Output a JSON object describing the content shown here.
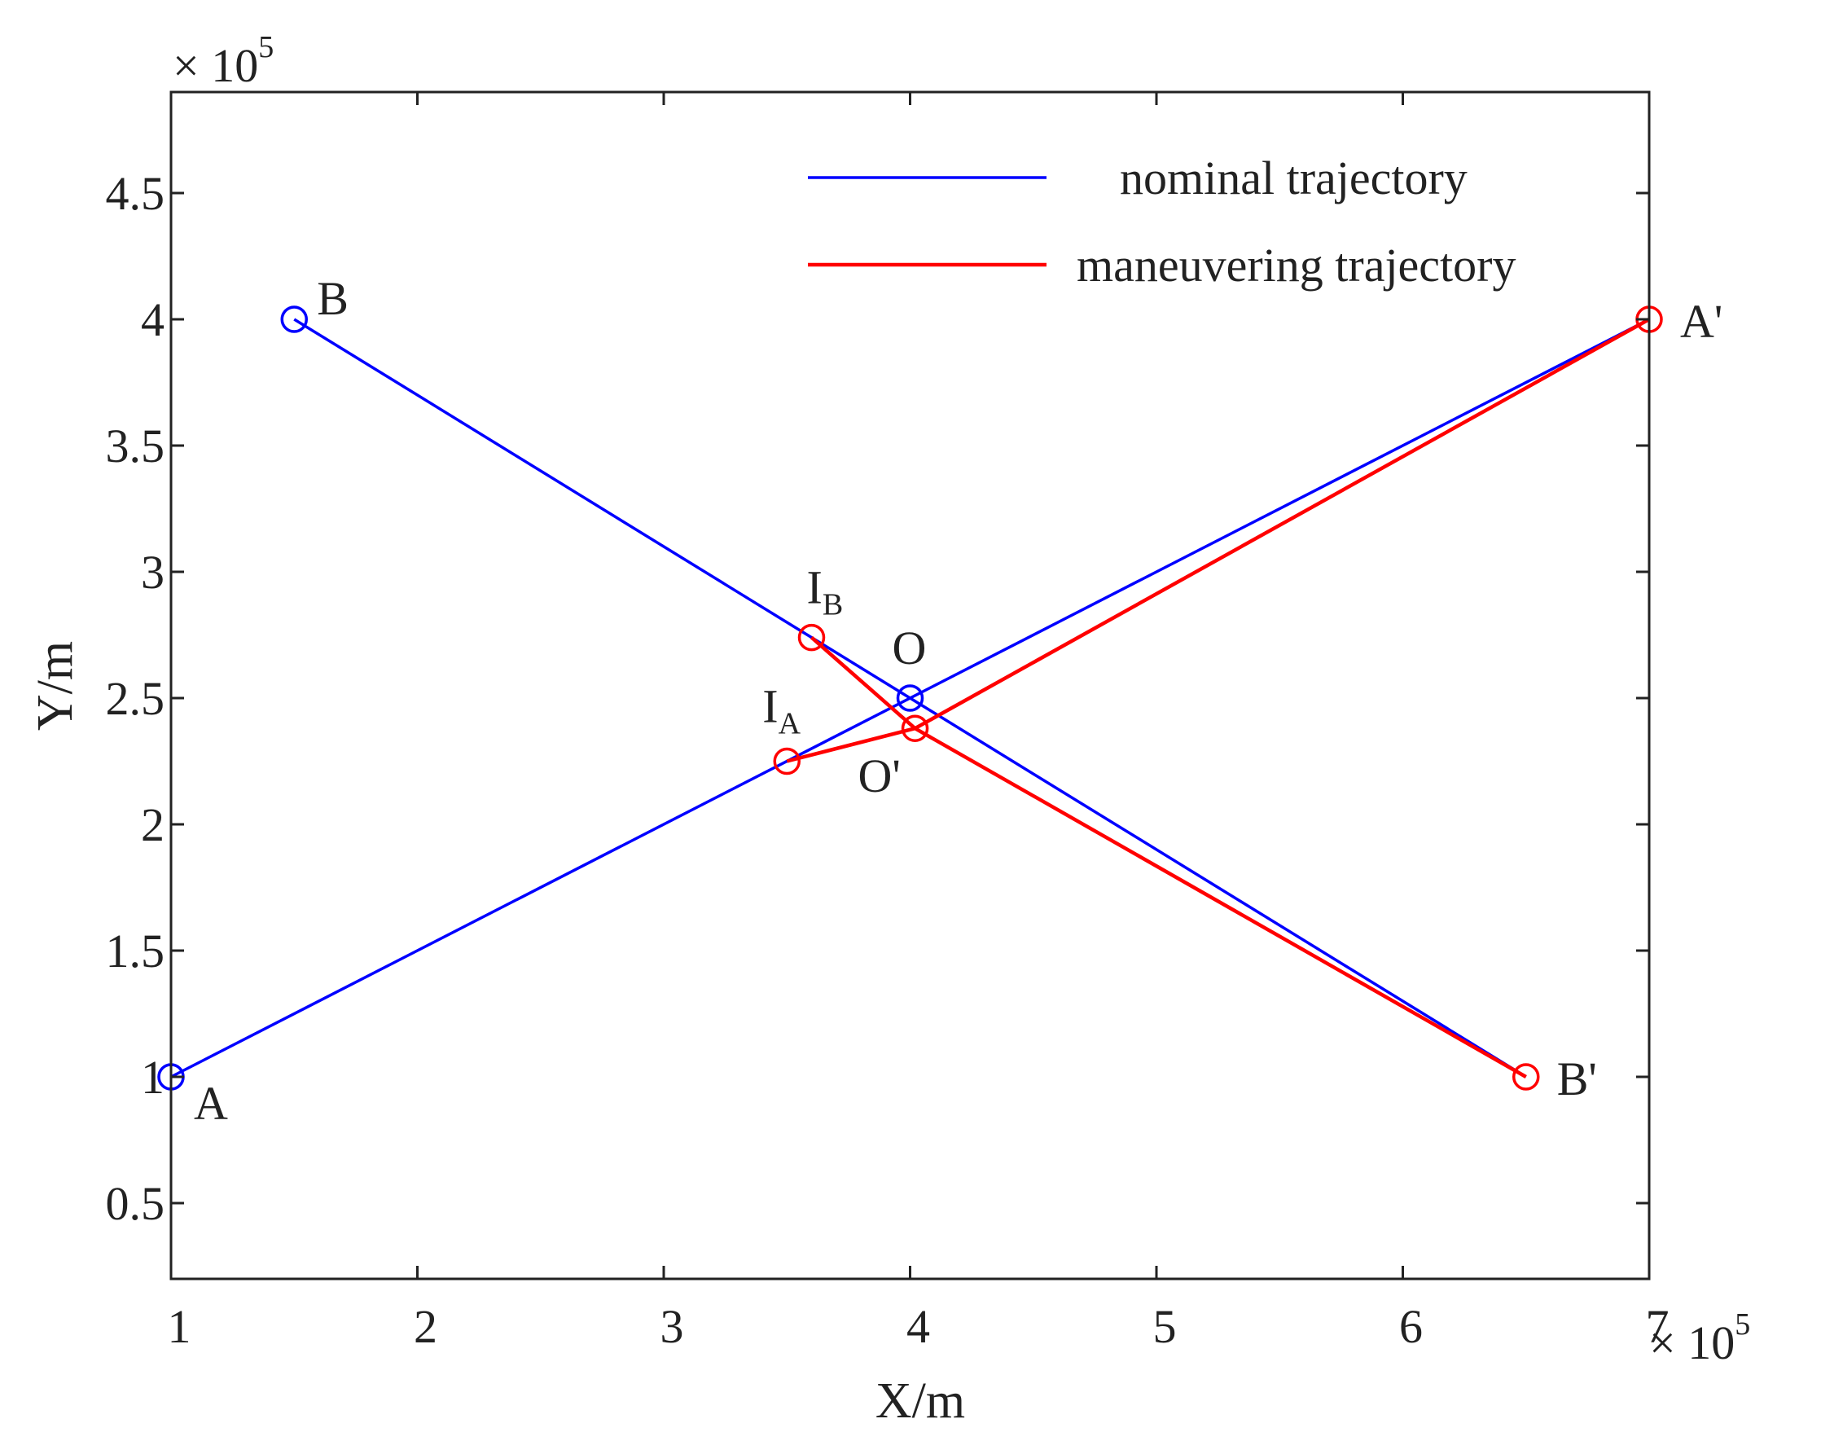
{
  "chart_data": {
    "type": "line",
    "title": "",
    "xlabel": "X/m",
    "ylabel": "Y/m",
    "x_exponent_label": "× 10",
    "x_exponent_power": "5",
    "y_exponent_label": "× 10",
    "y_exponent_power": "5",
    "xlim": [
      1,
      7
    ],
    "ylim": [
      0.2,
      4.9
    ],
    "xticks": [
      1,
      2,
      3,
      4,
      5,
      6,
      7
    ],
    "yticks": [
      0.5,
      1,
      1.5,
      2,
      2.5,
      3,
      3.5,
      4,
      4.5
    ],
    "xtick_labels": [
      "1",
      "2",
      "3",
      "4",
      "5",
      "6",
      "7"
    ],
    "ytick_labels": [
      "0.5",
      "1",
      "1.5",
      "2",
      "2.5",
      "3",
      "3.5",
      "4",
      "4.5"
    ],
    "grid": false,
    "legend_position": "top-right",
    "series": [
      {
        "name": "nominal  trajectory",
        "color": "#0000ff",
        "segments": [
          [
            {
              "x": 1.0,
              "y": 1.0
            },
            {
              "x": 7.0,
              "y": 4.0
            }
          ],
          [
            {
              "x": 1.5,
              "y": 4.0
            },
            {
              "x": 6.5,
              "y": 1.0
            }
          ]
        ]
      },
      {
        "name": "maneuvering trajectory",
        "color": "#ff0000",
        "segments": [
          [
            {
              "x": 3.5,
              "y": 2.25
            },
            {
              "x": 4.02,
              "y": 2.38
            },
            {
              "x": 7.0,
              "y": 4.0
            }
          ],
          [
            {
              "x": 3.6,
              "y": 2.74
            },
            {
              "x": 4.02,
              "y": 2.38
            },
            {
              "x": 6.5,
              "y": 1.0
            }
          ]
        ]
      }
    ],
    "markers": [
      {
        "x": 1.0,
        "y": 1.0,
        "color": "#0000ff",
        "label": "A",
        "sub": ""
      },
      {
        "x": 1.5,
        "y": 4.0,
        "color": "#0000ff",
        "label": "B",
        "sub": ""
      },
      {
        "x": 4.0,
        "y": 2.5,
        "color": "#0000ff",
        "label": "O",
        "sub": ""
      },
      {
        "x": 7.0,
        "y": 4.0,
        "color": "#ff0000",
        "label": "A'",
        "sub": ""
      },
      {
        "x": 6.5,
        "y": 1.0,
        "color": "#ff0000",
        "label": "B'",
        "sub": ""
      },
      {
        "x": 3.5,
        "y": 2.25,
        "color": "#ff0000",
        "label": "I",
        "sub": "A"
      },
      {
        "x": 3.6,
        "y": 2.74,
        "color": "#ff0000",
        "label": "I",
        "sub": "B"
      },
      {
        "x": 4.02,
        "y": 2.38,
        "color": "#ff0000",
        "label": "O'",
        "sub": ""
      }
    ]
  }
}
